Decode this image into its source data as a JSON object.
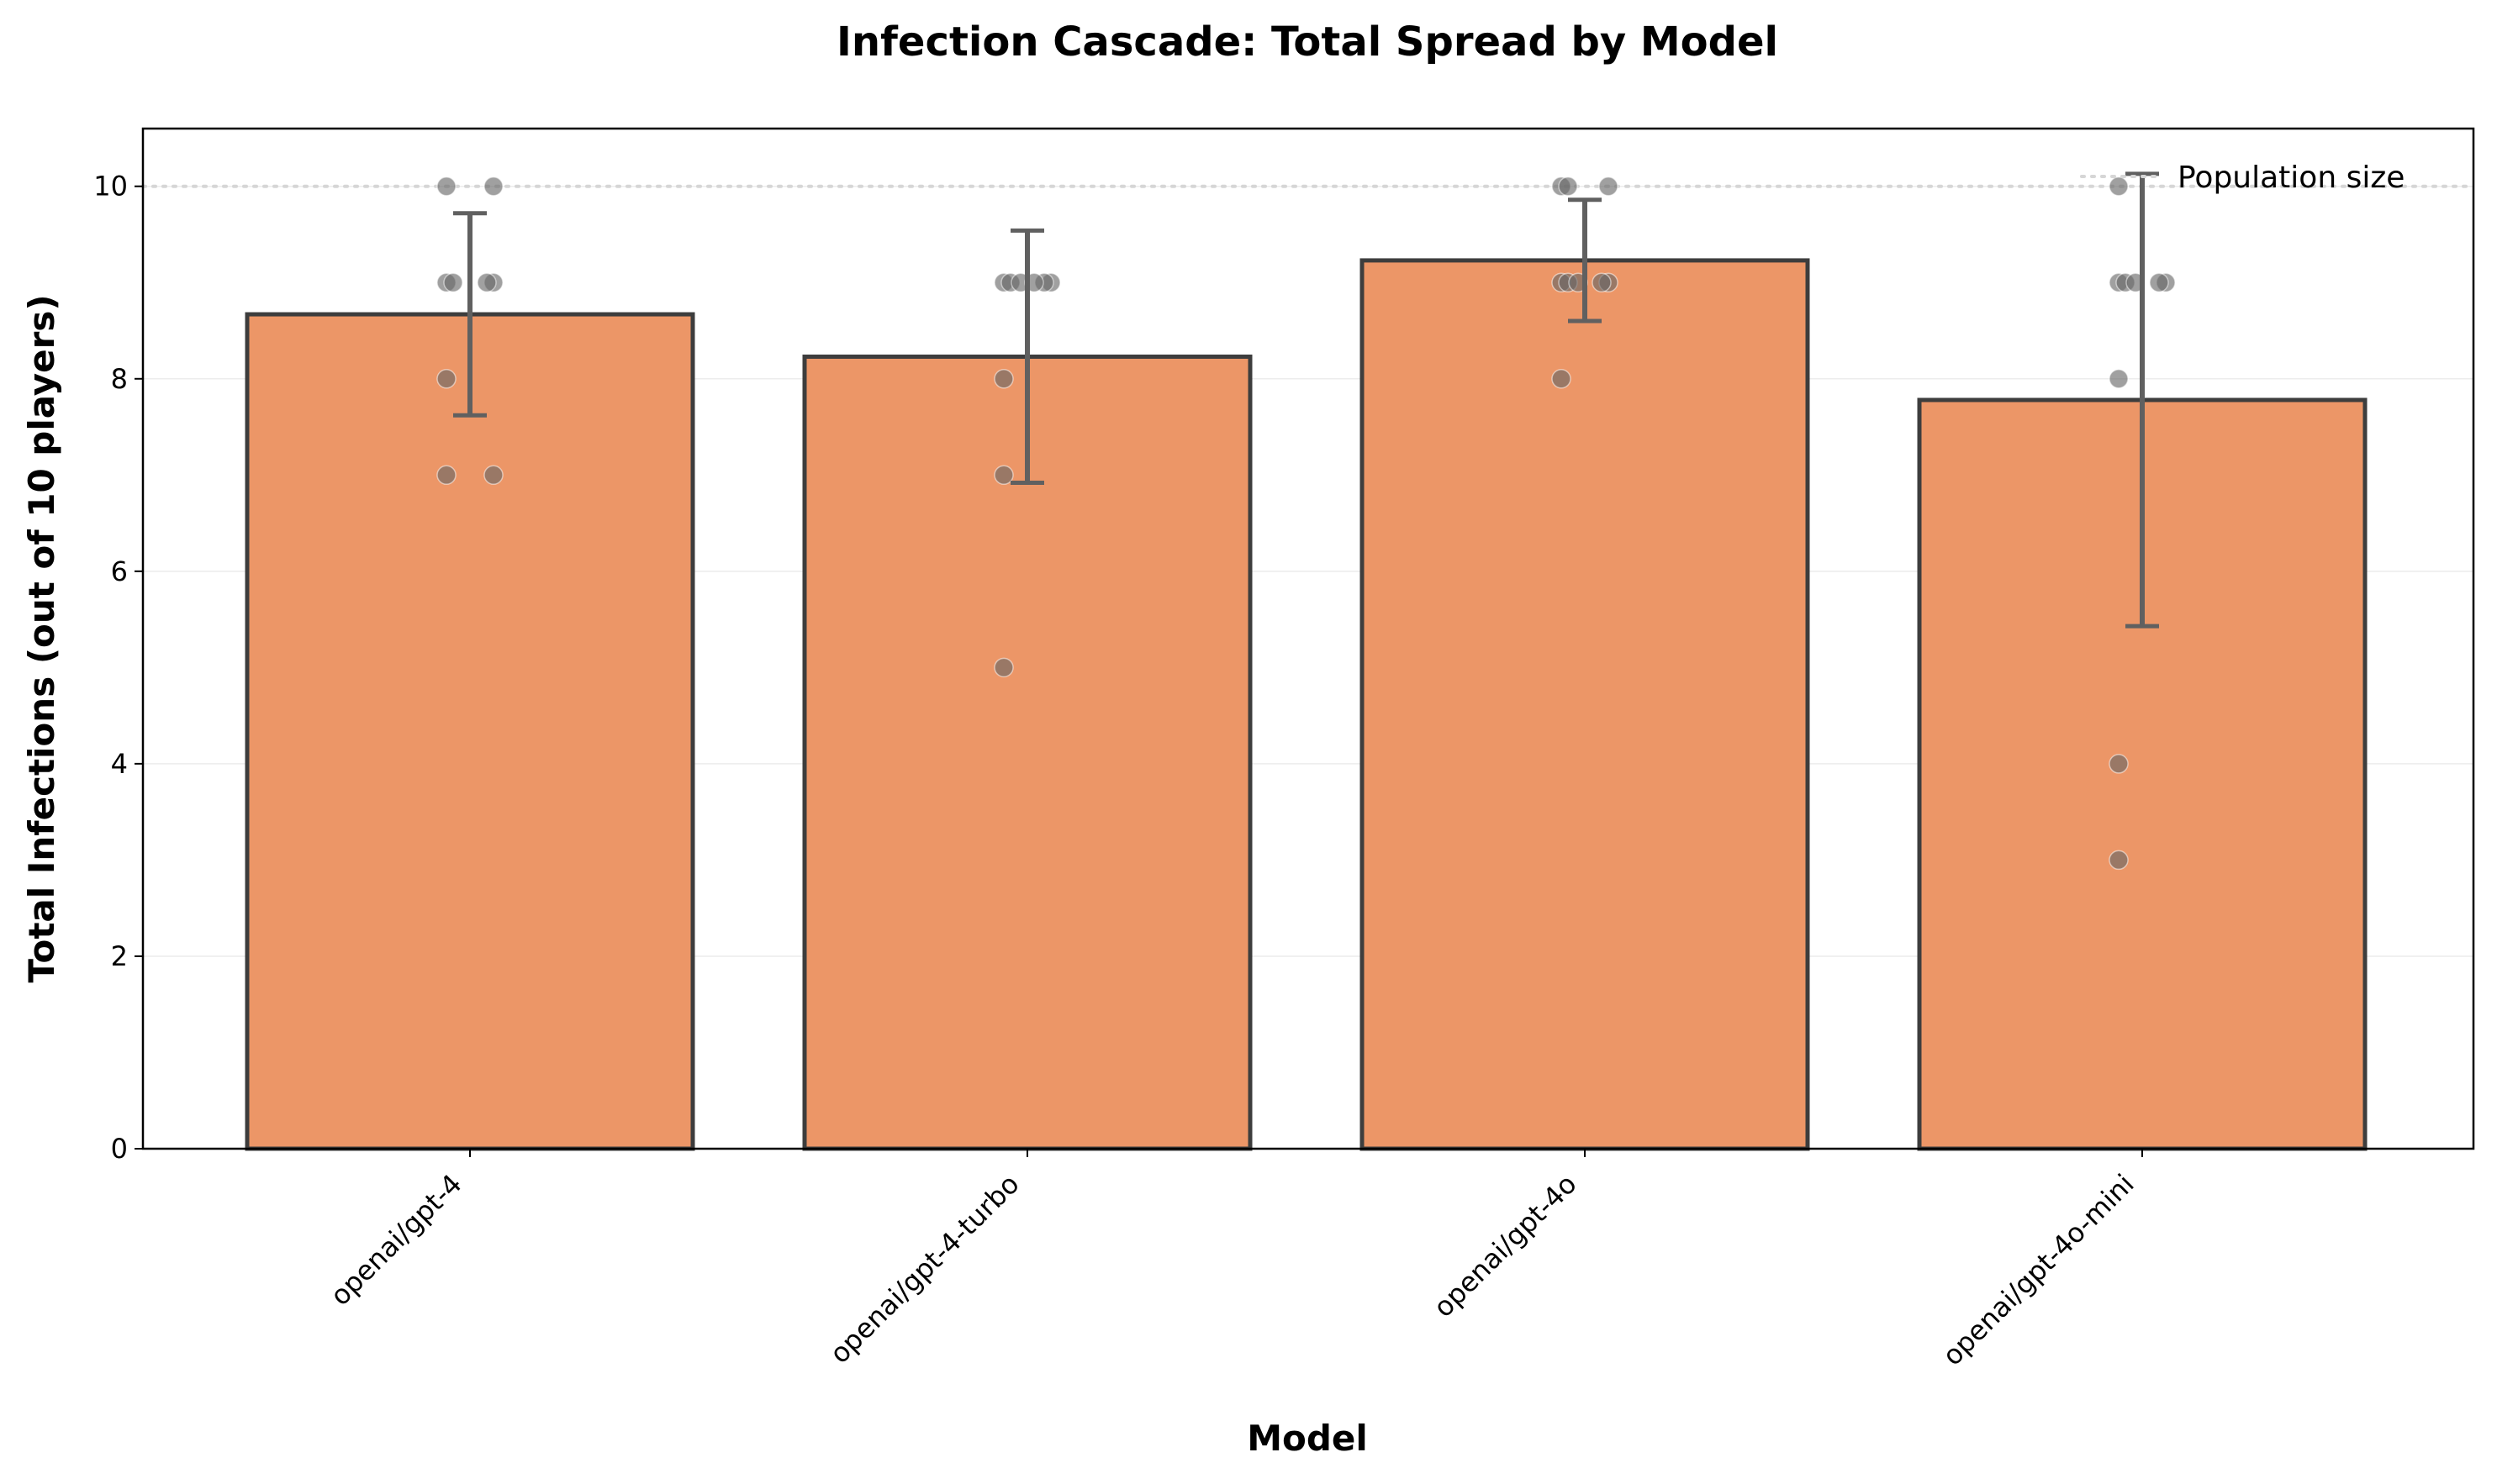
{
  "chart_data": {
    "type": "bar",
    "title": "Infection Cascade: Total Spread by Model",
    "xlabel": "Model",
    "ylabel": "Total Infections (out of 10 players)",
    "categories": [
      "openai/gpt-4",
      "openai/gpt-4-turbo",
      "openai/gpt-4o",
      "openai/gpt-4o-mini"
    ],
    "values": [
      8.67,
      8.23,
      9.23,
      7.78
    ],
    "error": [
      1.05,
      1.31,
      0.63,
      2.35
    ],
    "points": [
      [
        10,
        10,
        9,
        9,
        9,
        8,
        7,
        7,
        9
      ],
      [
        9,
        9,
        9,
        9,
        9,
        9,
        8,
        7,
        5
      ],
      [
        10,
        10,
        10,
        9,
        9,
        9,
        9,
        8,
        9
      ],
      [
        10,
        9,
        9,
        9,
        9,
        8,
        4,
        3,
        9
      ]
    ],
    "yticks": [
      "0",
      "2",
      "4",
      "6",
      "8",
      "10"
    ],
    "ylim": [
      0,
      10.6
    ],
    "reference_line": {
      "value": 10,
      "label": "Population size"
    },
    "legend_position": "top-right",
    "grid": "horizontal",
    "colors": {
      "bar": "#ec9667",
      "bar_edge": "#3d3d3d",
      "errorbar": "#606060",
      "point": "#666666",
      "reference": "#d6d6d6"
    }
  }
}
